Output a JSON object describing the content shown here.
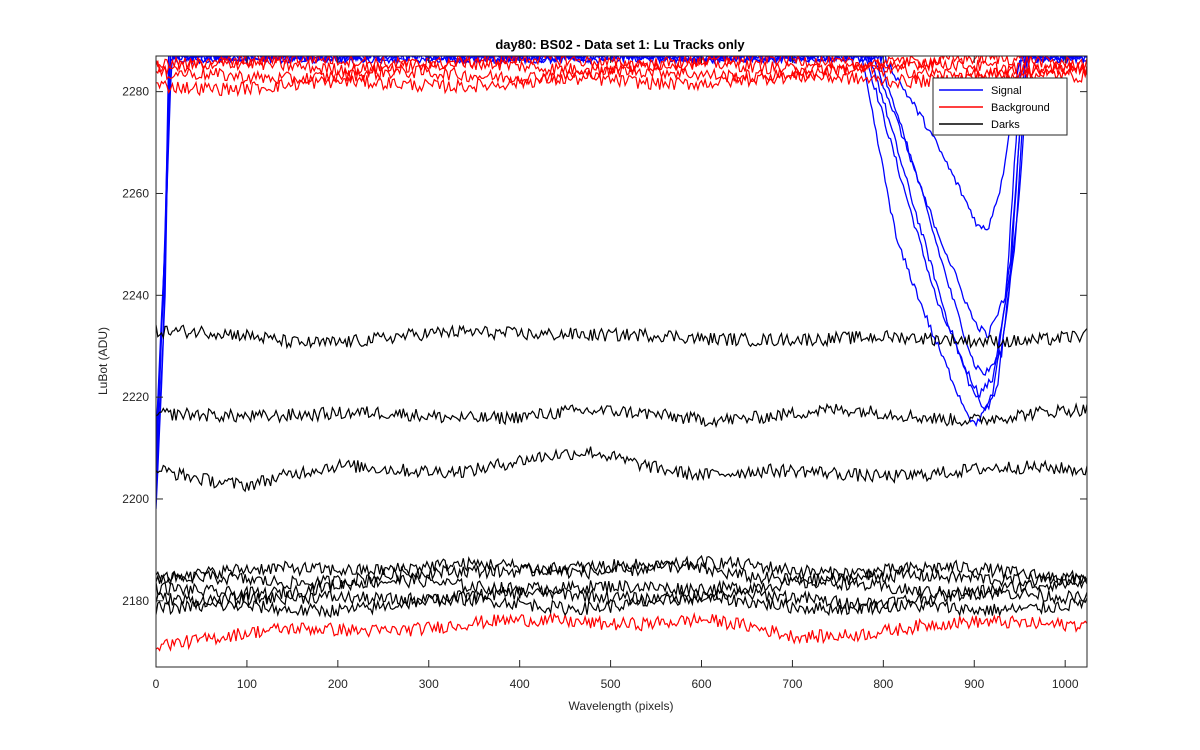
{
  "chart_data": {
    "type": "line",
    "title": "day80: BS02 - Data set 1: Lu Tracks only",
    "xlabel": "Wavelength (pixels)",
    "ylabel": "LuBot (ADU)",
    "xlim": [
      0,
      1024
    ],
    "ylim": [
      2167,
      2287
    ],
    "xticks": [
      0,
      100,
      200,
      300,
      400,
      500,
      600,
      700,
      800,
      900,
      1000
    ],
    "yticks": [
      2180,
      2200,
      2220,
      2240,
      2260,
      2280
    ],
    "grid": false,
    "legend_position": "top-right",
    "legend": [
      {
        "label": "Signal",
        "color": "#0000ff"
      },
      {
        "label": "Background",
        "color": "#ff0000"
      },
      {
        "label": "Darks",
        "color": "#000000"
      }
    ],
    "series": [
      {
        "group": "Signal",
        "color": "#0000ff",
        "points": [
          [
            0,
            2212
          ],
          [
            10,
            2250
          ],
          [
            16,
            2287
          ],
          [
            780,
            2287
          ],
          [
            820,
            2262
          ],
          [
            860,
            2238
          ],
          [
            890,
            2226
          ],
          [
            905,
            2221
          ],
          [
            920,
            2224
          ],
          [
            940,
            2245
          ],
          [
            955,
            2287
          ]
        ]
      },
      {
        "group": "Signal",
        "color": "#0000ff",
        "points": [
          [
            0,
            2197
          ],
          [
            8,
            2230
          ],
          [
            14,
            2287
          ],
          [
            785,
            2287
          ],
          [
            830,
            2260
          ],
          [
            870,
            2236
          ],
          [
            895,
            2223
          ],
          [
            910,
            2218
          ],
          [
            925,
            2222
          ],
          [
            945,
            2250
          ],
          [
            958,
            2287
          ]
        ]
      },
      {
        "group": "Signal",
        "color": "#0000ff",
        "points": [
          [
            0,
            2204
          ],
          [
            12,
            2260
          ],
          [
            17,
            2287
          ],
          [
            790,
            2287
          ],
          [
            835,
            2265
          ],
          [
            875,
            2240
          ],
          [
            900,
            2226
          ],
          [
            912,
            2224
          ],
          [
            930,
            2228
          ],
          [
            950,
            2260
          ],
          [
            960,
            2287
          ]
        ]
      },
      {
        "group": "Signal",
        "color": "#0000ff",
        "points": [
          [
            0,
            2208
          ],
          [
            11,
            2255
          ],
          [
            16,
            2287
          ],
          [
            800,
            2287
          ],
          [
            850,
            2272
          ],
          [
            885,
            2260
          ],
          [
            905,
            2253
          ],
          [
            915,
            2253
          ],
          [
            930,
            2262
          ],
          [
            950,
            2287
          ]
        ]
      },
      {
        "group": "Signal",
        "color": "#0000ff",
        "points": [
          [
            0,
            2210
          ],
          [
            9,
            2245
          ],
          [
            15,
            2287
          ],
          [
            775,
            2287
          ],
          [
            815,
            2250
          ],
          [
            855,
            2232
          ],
          [
            885,
            2220
          ],
          [
            900,
            2215
          ],
          [
            920,
            2220
          ],
          [
            940,
            2248
          ],
          [
            956,
            2287
          ]
        ]
      },
      {
        "group": "Signal",
        "color": "#0000ff",
        "points": [
          [
            0,
            2200
          ],
          [
            10,
            2240
          ],
          [
            15,
            2287
          ],
          [
            795,
            2287
          ],
          [
            840,
            2262
          ],
          [
            880,
            2244
          ],
          [
            900,
            2235
          ],
          [
            915,
            2232
          ],
          [
            935,
            2240
          ],
          [
            952,
            2287
          ]
        ]
      },
      {
        "group": "Background",
        "color": "#ff0000",
        "points": [
          [
            0,
            2286
          ],
          [
            1024,
            2286
          ]
        ]
      },
      {
        "group": "Background",
        "color": "#ff0000",
        "points": [
          [
            0,
            2285
          ],
          [
            1024,
            2285
          ]
        ]
      },
      {
        "group": "Background",
        "color": "#ff0000",
        "points": [
          [
            0,
            2283
          ],
          [
            1024,
            2284
          ]
        ]
      },
      {
        "group": "Background",
        "color": "#ff0000",
        "points": [
          [
            0,
            2281
          ],
          [
            1024,
            2283
          ]
        ]
      },
      {
        "group": "Background",
        "color": "#ff0000",
        "points": [
          [
            0,
            2172
          ],
          [
            150,
            2174
          ],
          [
            300,
            2175
          ],
          [
            450,
            2176
          ],
          [
            600,
            2176
          ],
          [
            700,
            2173
          ],
          [
            850,
            2175
          ],
          [
            1024,
            2176
          ]
        ]
      },
      {
        "group": "Darks",
        "color": "#000000",
        "points": [
          [
            0,
            2233
          ],
          [
            150,
            2231
          ],
          [
            300,
            2232
          ],
          [
            450,
            2233
          ],
          [
            600,
            2231
          ],
          [
            700,
            2232
          ],
          [
            850,
            2231
          ],
          [
            1024,
            2232
          ]
        ]
      },
      {
        "group": "Darks",
        "color": "#000000",
        "points": [
          [
            0,
            2216
          ],
          [
            150,
            2217
          ],
          [
            300,
            2216
          ],
          [
            450,
            2217
          ],
          [
            600,
            2216
          ],
          [
            750,
            2217
          ],
          [
            900,
            2216
          ],
          [
            1024,
            2217
          ]
        ]
      },
      {
        "group": "Darks",
        "color": "#000000",
        "points": [
          [
            0,
            2206
          ],
          [
            100,
            2203
          ],
          [
            200,
            2206
          ],
          [
            350,
            2206
          ],
          [
            480,
            2209
          ],
          [
            600,
            2205
          ],
          [
            800,
            2205
          ],
          [
            1024,
            2206
          ]
        ]
      },
      {
        "group": "Darks",
        "color": "#000000",
        "points": [
          [
            0,
            2185
          ],
          [
            150,
            2186
          ],
          [
            300,
            2187
          ],
          [
            450,
            2186
          ],
          [
            600,
            2187
          ],
          [
            750,
            2186
          ],
          [
            900,
            2186
          ],
          [
            1024,
            2185
          ]
        ]
      },
      {
        "group": "Darks",
        "color": "#000000",
        "points": [
          [
            0,
            2184
          ],
          [
            150,
            2184
          ],
          [
            300,
            2185
          ],
          [
            450,
            2187
          ],
          [
            600,
            2186
          ],
          [
            750,
            2184
          ],
          [
            900,
            2185
          ],
          [
            1024,
            2184
          ]
        ]
      },
      {
        "group": "Darks",
        "color": "#000000",
        "points": [
          [
            0,
            2182
          ],
          [
            150,
            2182
          ],
          [
            300,
            2184
          ],
          [
            450,
            2182
          ],
          [
            600,
            2183
          ],
          [
            750,
            2183
          ],
          [
            900,
            2182
          ],
          [
            1024,
            2183
          ]
        ]
      },
      {
        "group": "Darks",
        "color": "#000000",
        "points": [
          [
            0,
            2181
          ],
          [
            150,
            2180
          ],
          [
            300,
            2181
          ],
          [
            450,
            2181
          ],
          [
            600,
            2181
          ],
          [
            750,
            2180
          ],
          [
            900,
            2181
          ],
          [
            1024,
            2181
          ]
        ]
      },
      {
        "group": "Darks",
        "color": "#000000",
        "points": [
          [
            0,
            2179
          ],
          [
            150,
            2178
          ],
          [
            300,
            2180
          ],
          [
            450,
            2179
          ],
          [
            600,
            2180
          ],
          [
            750,
            2179
          ],
          [
            900,
            2178
          ],
          [
            1024,
            2180
          ]
        ]
      }
    ]
  }
}
